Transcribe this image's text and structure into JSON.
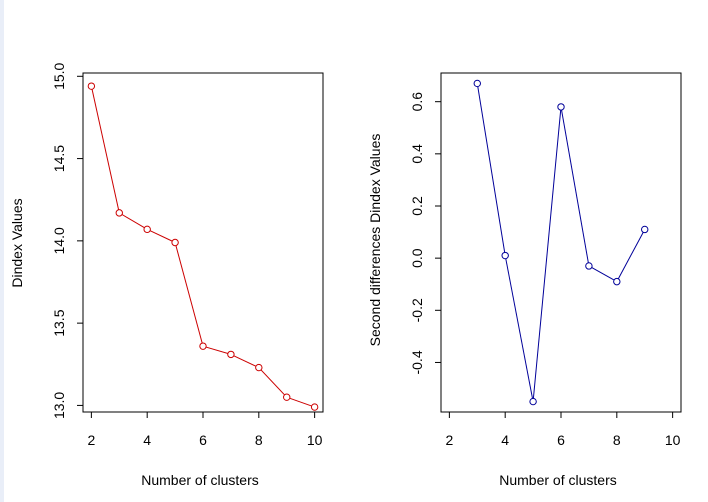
{
  "chart_data": [
    {
      "type": "line",
      "title": "",
      "xlabel": "Number of clusters",
      "ylabel": "Dindex Values",
      "x": [
        2,
        3,
        4,
        5,
        6,
        7,
        8,
        9,
        10
      ],
      "values": [
        14.94,
        14.17,
        14.07,
        13.99,
        13.36,
        13.31,
        13.23,
        13.05,
        12.99
      ],
      "xlim": [
        1.7,
        10.3
      ],
      "ylim": [
        12.96,
        15.02
      ],
      "xticks": [
        "2",
        "4",
        "6",
        "8",
        "10"
      ],
      "yticks": [
        "13.0",
        "13.5",
        "14.0",
        "14.5",
        "15.0"
      ],
      "line_color": "#cc0000",
      "marker_color": "#cc0000"
    },
    {
      "type": "line",
      "title": "",
      "xlabel": "Number of clusters",
      "ylabel": "Second differences Dindex Values",
      "x": [
        3,
        4,
        5,
        6,
        7,
        8,
        9
      ],
      "values": [
        0.67,
        0.01,
        -0.55,
        0.58,
        -0.03,
        -0.09,
        0.11
      ],
      "xlim": [
        1.7,
        10.3
      ],
      "ylim": [
        -0.59,
        0.71
      ],
      "xticks": [
        "2",
        "4",
        "6",
        "8",
        "10"
      ],
      "yticks": [
        "-0.4",
        "-0.2",
        "0.0",
        "0.2",
        "0.4",
        "0.6"
      ],
      "line_color": "#000099",
      "marker_color": "#000099"
    }
  ]
}
